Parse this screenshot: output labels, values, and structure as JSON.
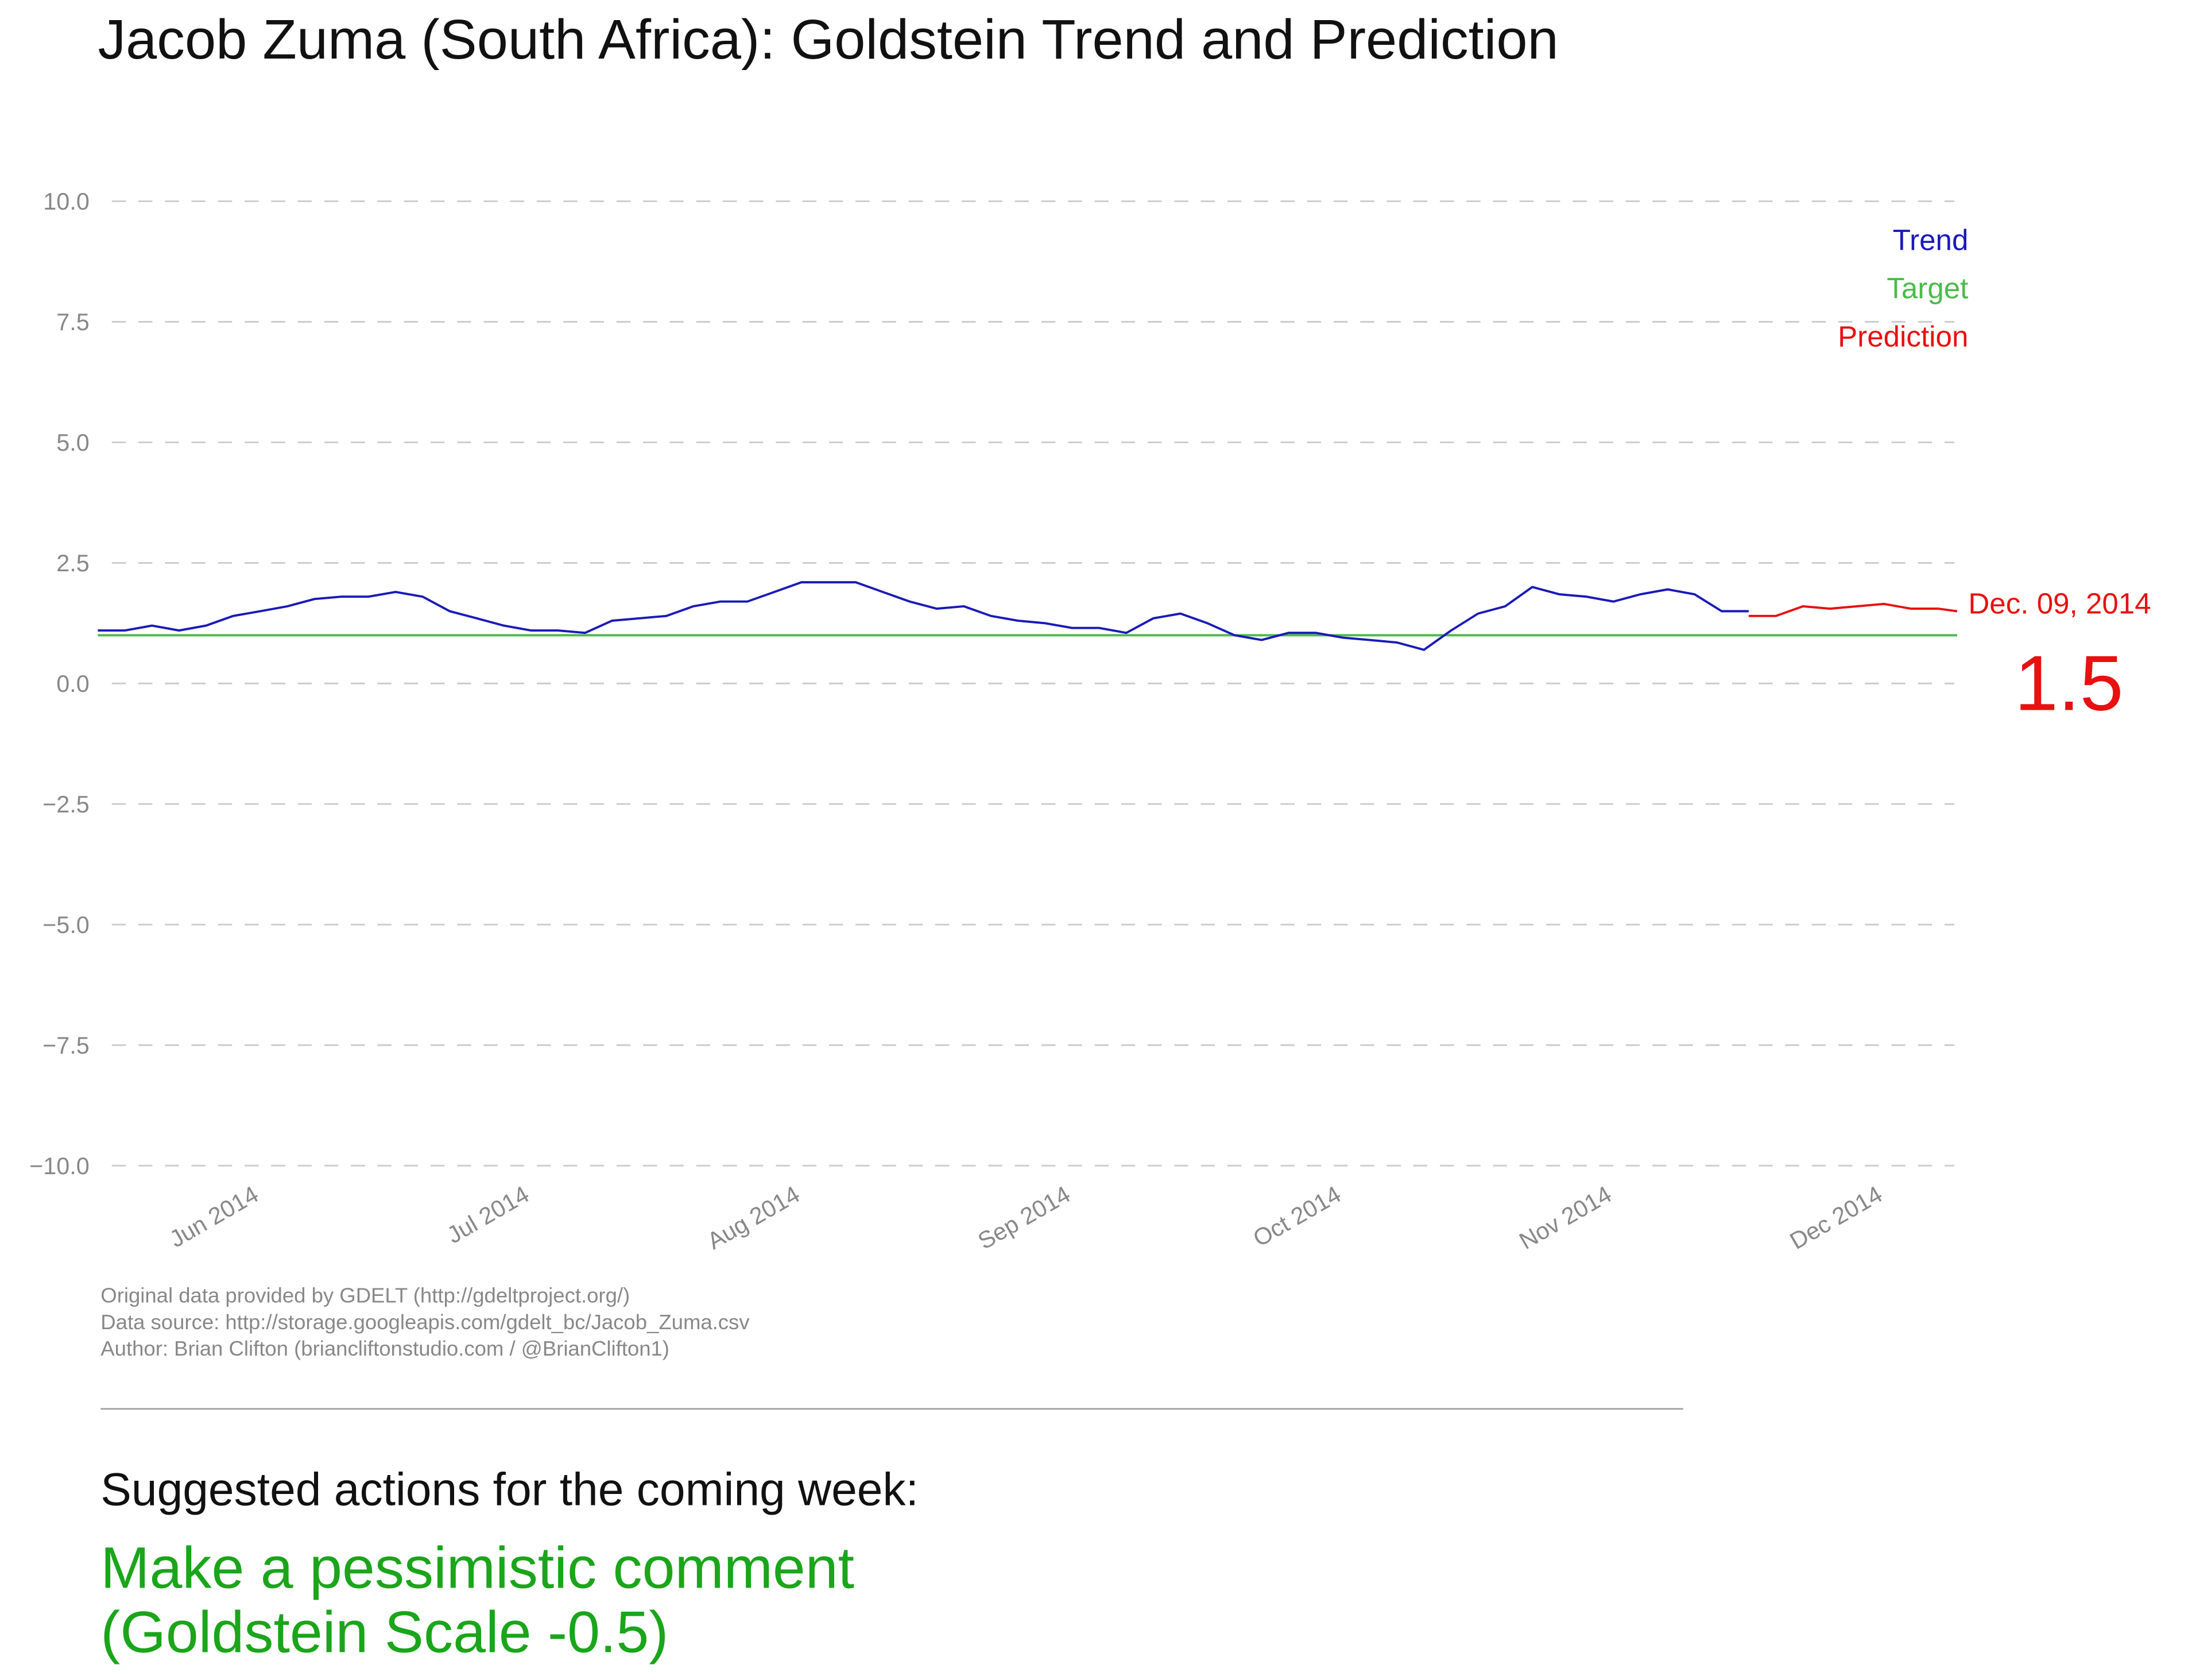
{
  "chart_data": {
    "type": "line",
    "title": "Jacob Zuma (South Africa): Goldstein Trend and Prediction",
    "xlim": [
      5.4,
      12.27
    ],
    "xticks": [
      {
        "value": 6,
        "label": "Jun 2014"
      },
      {
        "value": 7,
        "label": "Jul 2014"
      },
      {
        "value": 8,
        "label": "Aug 2014"
      },
      {
        "value": 9,
        "label": "Sep 2014"
      },
      {
        "value": 10,
        "label": "Oct 2014"
      },
      {
        "value": 11,
        "label": "Nov 2014"
      },
      {
        "value": 12,
        "label": "Dec 2014"
      }
    ],
    "ylim": [
      -10,
      10
    ],
    "yticks": [
      {
        "value": 10,
        "label": "10.0"
      },
      7.5,
      {
        "value": 5,
        "label": "5.0"
      },
      2.5,
      {
        "value": 0,
        "label": "0.0"
      },
      {
        "value": -2.5,
        "label": "−2.5"
      },
      {
        "value": -5,
        "label": "−5.0"
      },
      {
        "value": -7.5,
        "label": "−7.5"
      },
      {
        "value": -10,
        "label": "−10.0"
      }
    ],
    "grid": true,
    "legend": "top-right",
    "series": [
      {
        "name": "Trend",
        "color": "#1a1ab8",
        "x": [
          5.4,
          5.5,
          5.6,
          5.7,
          5.8,
          5.9,
          6.0,
          6.1,
          6.2,
          6.3,
          6.4,
          6.5,
          6.6,
          6.7,
          6.8,
          6.9,
          7.0,
          7.1,
          7.2,
          7.3,
          7.4,
          7.5,
          7.6,
          7.7,
          7.8,
          7.9,
          8.0,
          8.1,
          8.2,
          8.3,
          8.4,
          8.5,
          8.6,
          8.7,
          8.8,
          8.9,
          9.0,
          9.1,
          9.2,
          9.3,
          9.4,
          9.5,
          9.6,
          9.7,
          9.8,
          9.9,
          10.0,
          10.1,
          10.2,
          10.3,
          10.4,
          10.5,
          10.6,
          10.7,
          10.8,
          10.9,
          11.0,
          11.1,
          11.2,
          11.3,
          11.4,
          11.5
        ],
        "values": [
          1.1,
          1.1,
          1.2,
          1.1,
          1.2,
          1.4,
          1.5,
          1.6,
          1.75,
          1.8,
          1.8,
          1.9,
          1.8,
          1.5,
          1.35,
          1.2,
          1.1,
          1.1,
          1.05,
          1.3,
          1.35,
          1.4,
          1.6,
          1.7,
          1.7,
          1.9,
          2.1,
          2.1,
          2.1,
          1.9,
          1.7,
          1.55,
          1.6,
          1.4,
          1.3,
          1.25,
          1.15,
          1.15,
          1.05,
          1.35,
          1.45,
          1.25,
          1.0,
          0.9,
          1.05,
          1.05,
          0.95,
          0.9,
          0.85,
          0.7,
          1.1,
          1.45,
          1.6,
          2.0,
          1.85,
          1.8,
          1.7,
          1.85,
          1.95,
          1.85,
          1.5,
          1.5
        ]
      },
      {
        "name": "Target",
        "color": "#4cbb4c",
        "x": [
          5.4,
          12.27
        ],
        "values": [
          1,
          1
        ]
      },
      {
        "name": "Prediction",
        "color": "#e81010",
        "x": [
          11.5,
          11.6,
          11.7,
          11.8,
          11.9,
          12.0,
          12.1,
          12.2,
          12.27
        ],
        "values": [
          1.4,
          1.4,
          1.6,
          1.55,
          1.6,
          1.65,
          1.55,
          1.55,
          1.5
        ]
      }
    ],
    "prediction_label": "Dec. 09, 2014",
    "prediction_value": 1.5
  },
  "footer": {
    "credits": [
      "Original data provided by GDELT (http://gdeltproject.org/)",
      "Data source: http://storage.googleapis.com/gdelt_bc/Jacob_Zuma.csv",
      "Author: Brian Clifton (briancliftonstudio.com / @BrianClifton1)"
    ],
    "actions_heading": "Suggested actions for the coming week:",
    "action_lines": [
      "Make a pessimistic comment",
      "(Goldstein Scale -0.5)"
    ]
  }
}
